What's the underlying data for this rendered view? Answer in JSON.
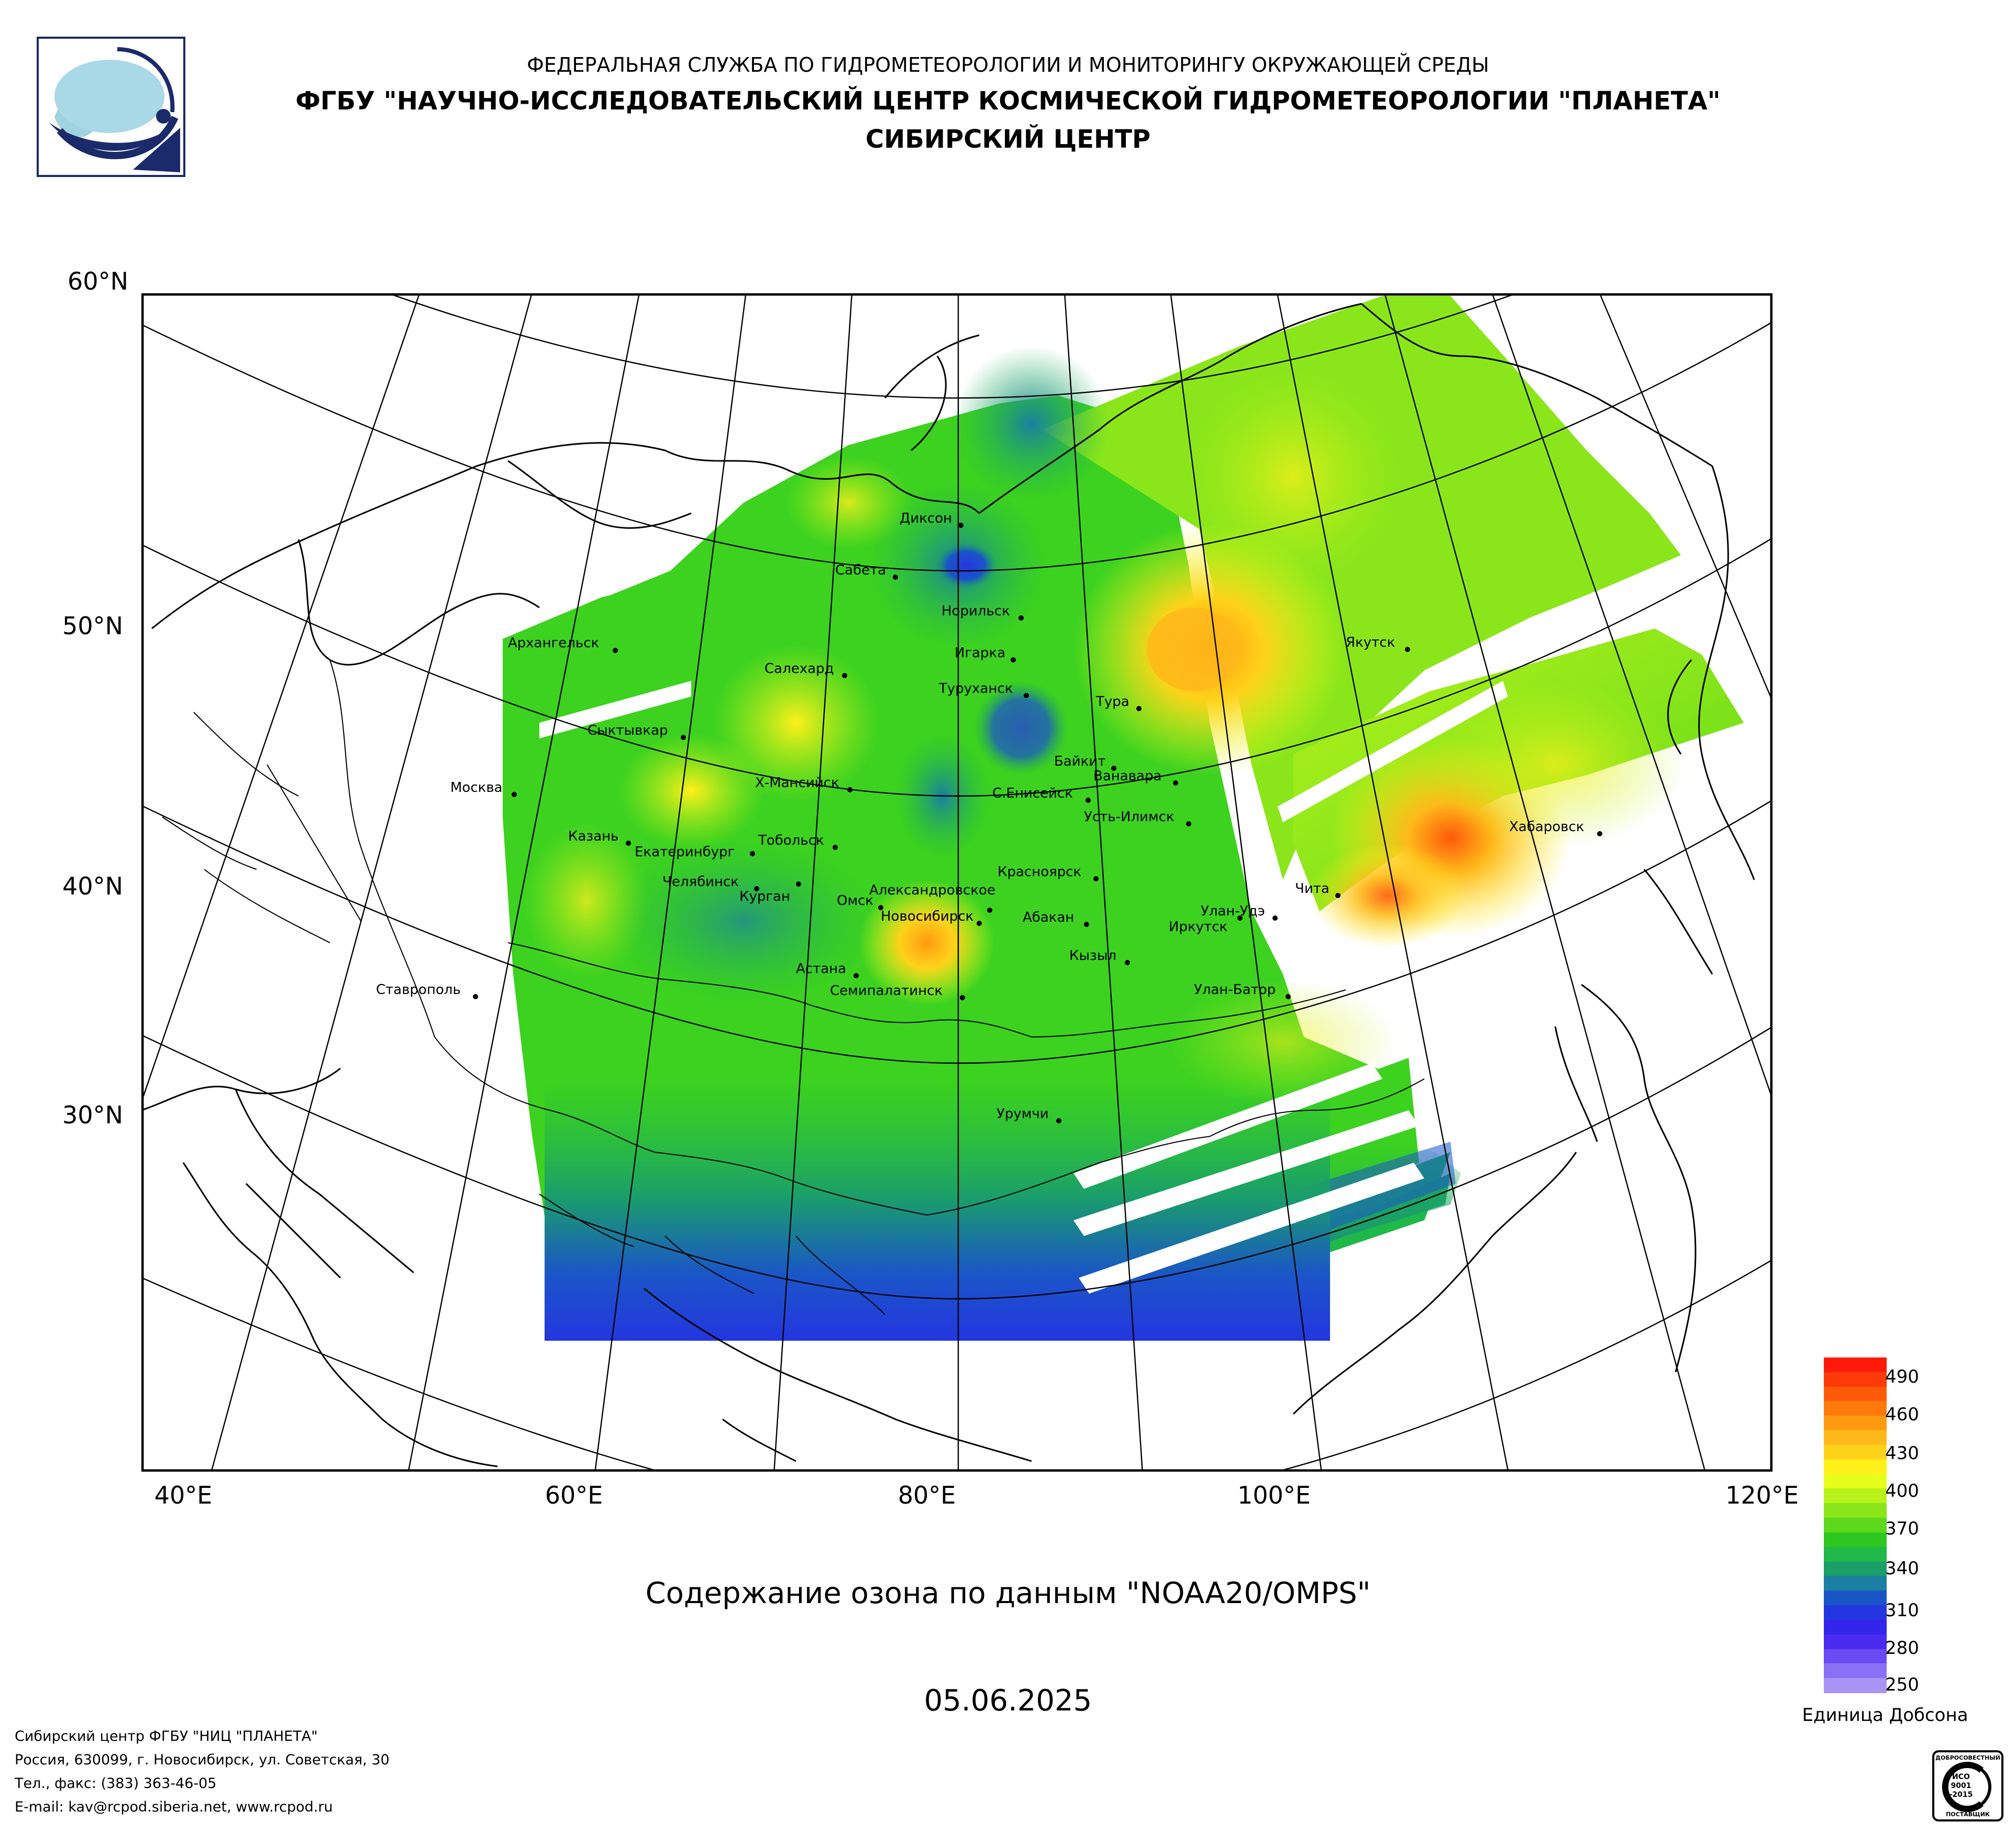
{
  "header": {
    "line1": "ФЕДЕРАЛЬНАЯ СЛУЖБА ПО ГИДРОМЕТЕОРОЛОГИИ И МОНИТОРИНГУ ОКРУЖАЮЩЕЙ СРЕДЫ",
    "line2": "ФГБУ \"НАУЧНО-ИССЛЕДОВАТЕЛЬСКИЙ ЦЕНТР КОСМИЧЕСКОЙ ГИДРОМЕТЕОРОЛОГИИ \"ПЛАНЕТА\"",
    "line3": "СИБИРСКИЙ ЦЕНТР"
  },
  "map": {
    "lat_labels": [
      "60°N",
      "50°N",
      "40°N",
      "30°N"
    ],
    "lon_labels": [
      "40°E",
      "60°E",
      "80°E",
      "100°E",
      "120°E"
    ],
    "cities": [
      {
        "name": "Архангельск",
        "label": "Архангельск"
      },
      {
        "name": "Диксон",
        "label": "Диксон"
      },
      {
        "name": "Сабета",
        "label": "Сабета"
      },
      {
        "name": "Норильск",
        "label": "Норильск"
      },
      {
        "name": "Игарка",
        "label": "Игарка"
      },
      {
        "name": "Салехард",
        "label": "Салехард"
      },
      {
        "name": "Туруханск",
        "label": "Туруханск"
      },
      {
        "name": "Тура",
        "label": "Тура"
      },
      {
        "name": "Якутск",
        "label": "Якутск"
      },
      {
        "name": "Сыктывкар",
        "label": "Сыктывкар"
      },
      {
        "name": "Москва",
        "label": "Москва"
      },
      {
        "name": "Х-Мансийск",
        "label": "Х-Мансийск"
      },
      {
        "name": "Байкит",
        "label": "Байкит"
      },
      {
        "name": "Ванавара",
        "label": "Ванавара"
      },
      {
        "name": "С.Енисейск",
        "label": "С.Енисейск"
      },
      {
        "name": "Усть-Илимск",
        "label": "Усть-Илимск"
      },
      {
        "name": "Казань",
        "label": "Казань"
      },
      {
        "name": "Екатеринбург",
        "label": "Екатеринбург"
      },
      {
        "name": "Тобольск",
        "label": "Тобольск"
      },
      {
        "name": "Хабаровск",
        "label": "Хабаровск"
      },
      {
        "name": "Челябинск",
        "label": "Челябинск"
      },
      {
        "name": "Курган",
        "label": "Курган"
      },
      {
        "name": "Александровское",
        "label": "Александровское"
      },
      {
        "name": "Омск",
        "label": "Омск"
      },
      {
        "name": "Новосибирск",
        "label": "Новосибирск"
      },
      {
        "name": "Красноярск",
        "label": "Красноярск"
      },
      {
        "name": "Абакан",
        "label": "Абакан"
      },
      {
        "name": "Чита",
        "label": "Чита"
      },
      {
        "name": "Улан-Удэ",
        "label": "Улан-Удэ"
      },
      {
        "name": "Иркутск",
        "label": "Иркутск"
      },
      {
        "name": "Кызыл",
        "label": "Кызыл"
      },
      {
        "name": "Астана",
        "label": "Астана"
      },
      {
        "name": "Семипалатинск",
        "label": "Семипалатинск"
      },
      {
        "name": "Ставрополь",
        "label": "Ставрополь"
      },
      {
        "name": "Улан-Батор",
        "label": "Улан-Батор"
      },
      {
        "name": "Урумчи",
        "label": "Урумчи"
      }
    ],
    "colors": {
      "frame": "#000000",
      "graticule": "#000000",
      "ozone_low": "#2b3fd9",
      "ozone_mid": "#22c21f",
      "ozone_high": "#f2f21a",
      "ozone_peak": "#ff4a0a"
    }
  },
  "caption": {
    "title": "Содержание озона по данным \"NOAA20/OMPS\"",
    "date": "05.06.2025"
  },
  "colorbar": {
    "ticks": [
      "490",
      "460",
      "430",
      "400",
      "370",
      "340",
      "310",
      "280",
      "250"
    ],
    "unit": "Единица Добсона",
    "colors": [
      "#ff1a0a",
      "#ff3a0a",
      "#ff5a0a",
      "#ff7a0a",
      "#ff9a10",
      "#ffb81a",
      "#ffd21a",
      "#fff01a",
      "#e6ff1a",
      "#b8f21a",
      "#8ae61a",
      "#5cd91a",
      "#2ec71f",
      "#1fb84a",
      "#1a9e6a",
      "#1a7fa0",
      "#1a55c8",
      "#2436e0",
      "#3326ea",
      "#4a2cf0",
      "#6a4af2",
      "#8a70f4",
      "#a994f6"
    ]
  },
  "footer": {
    "line1": "Сибирский центр ФГБУ \"НИЦ \"ПЛАНЕТА\"",
    "line2": "Россия, 630099, г. Новосибирск, ул. Советская, 30",
    "line3": "Тел., факс: (383) 363-46-05",
    "line4": "E-mail: kav@rcpod.siberia.net, www.rcpod.ru"
  },
  "cert": {
    "top": "ДОБРОСОВЕСТНЫЙ",
    "mid1": "ИСО",
    "mid2": "9001",
    "mid3": "-2015",
    "bottom": "ПОСТАВЩИК"
  }
}
